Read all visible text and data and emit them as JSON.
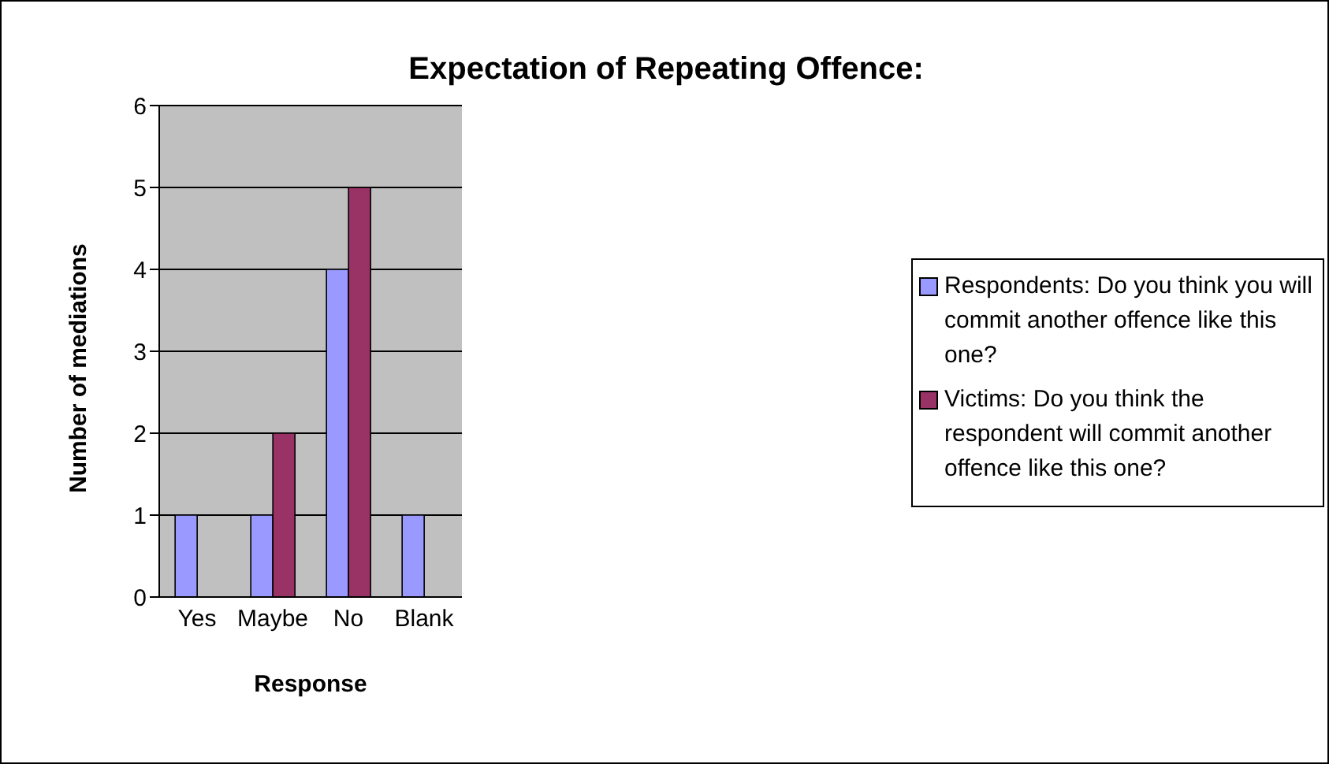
{
  "chart_data": {
    "type": "bar",
    "title": "Expectation of Repeating Offence:",
    "xlabel": "Response",
    "ylabel": "Number of mediations",
    "categories": [
      "Yes",
      "Maybe",
      "No",
      "Blank"
    ],
    "series": [
      {
        "name": "Respondents: Do you think you will commit another offence like this one?",
        "color": "#9999ff",
        "values": [
          1,
          1,
          4,
          1
        ]
      },
      {
        "name": "Victims: Do you think the respondent will commit another offence like this one?",
        "color": "#993366",
        "values": [
          null,
          2,
          5,
          null
        ]
      }
    ],
    "ylim": [
      0,
      6
    ],
    "yticks": [
      0,
      1,
      2,
      3,
      4,
      5,
      6
    ],
    "grid": "y",
    "legend": "right"
  }
}
